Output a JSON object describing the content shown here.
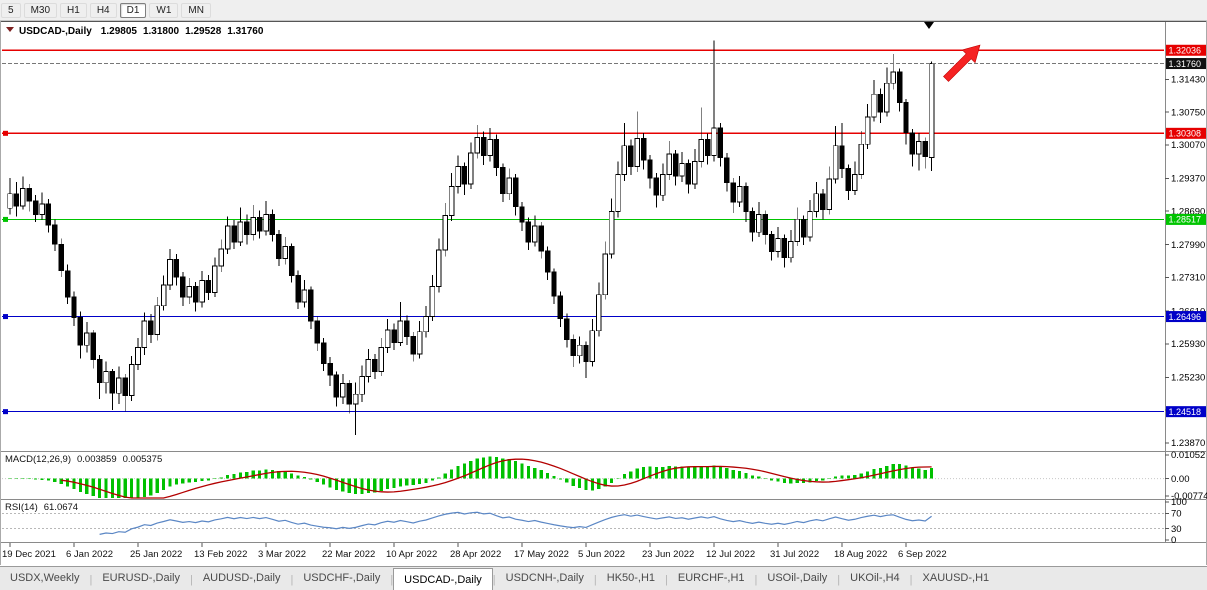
{
  "toolbar": {
    "timeframes": [
      {
        "label": "5",
        "active": false
      },
      {
        "label": "M30",
        "active": false
      },
      {
        "label": "H1",
        "active": false
      },
      {
        "label": "H4",
        "active": false
      },
      {
        "label": "D1",
        "active": true
      },
      {
        "label": "W1",
        "active": false
      },
      {
        "label": "MN",
        "active": false
      }
    ]
  },
  "chart": {
    "symbol_period": "USDCAD-,Daily",
    "open": "1.29805",
    "high": "1.31800",
    "low": "1.29528",
    "close": "1.31760",
    "current_price": {
      "label": "1.31760",
      "value": 1.3176,
      "box_color": "#111111"
    },
    "hlines": [
      {
        "value": 1.32036,
        "label": "1.32036",
        "color": "#e60000",
        "handle": false
      },
      {
        "value": 1.30308,
        "label": "1.30308",
        "color": "#e60000",
        "handle": true
      },
      {
        "value": 1.28517,
        "label": "1.28517",
        "color": "#00c400",
        "handle": true
      },
      {
        "value": 1.26496,
        "label": "1.26496",
        "color": "#0000c8",
        "handle": true
      },
      {
        "value": 1.24518,
        "label": "1.24518",
        "color": "#0000c8",
        "handle": true
      }
    ],
    "price_scale_labels": [
      "1.31430",
      "1.30750",
      "1.30070",
      "1.29370",
      "1.28690",
      "1.27990",
      "1.27310",
      "1.26610",
      "1.25930",
      "1.25230",
      "1.24550",
      "1.23870"
    ],
    "arrow_object_color": "#f52222"
  },
  "macd_panel": {
    "title": "MACD(12,26,9)",
    "value_main": "0.003859",
    "value_signal": "0.005375",
    "scale_labels": [
      "0.01052",
      "0.00",
      "-0.00774"
    ],
    "histogram_color": "#00c000",
    "signal_color": "#b30000"
  },
  "rsi_panel": {
    "title": "RSI(14)",
    "value": "61.0674",
    "scale_labels": [
      "100",
      "70",
      "30",
      "0"
    ],
    "levels": [
      70,
      30
    ],
    "line_color": "#5b87c5"
  },
  "time_axis": {
    "labels": [
      "19 Dec 2021",
      "6 Jan 2022",
      "25 Jan 2022",
      "13 Feb 2022",
      "3 Mar 2022",
      "22 Mar 2022",
      "10 Apr 2022",
      "28 Apr 2022",
      "17 May 2022",
      "5 Jun 2022",
      "23 Jun 2022",
      "12 Jul 2022",
      "31 Jul 2022",
      "18 Aug 2022",
      "6 Sep 2022"
    ]
  },
  "tabbar": {
    "tabs": [
      {
        "label": "USDX,Weekly",
        "active": false
      },
      {
        "label": "EURUSD-,Daily",
        "active": false
      },
      {
        "label": "AUDUSD-,Daily",
        "active": false
      },
      {
        "label": "USDCHF-,Daily",
        "active": false
      },
      {
        "label": "USDCAD-,Daily",
        "active": true
      },
      {
        "label": "USDCNH-,Daily",
        "active": false
      },
      {
        "label": "HK50-,H1",
        "active": false
      },
      {
        "label": "EURCHF-,H1",
        "active": false
      },
      {
        "label": "USOil-,Daily",
        "active": false
      },
      {
        "label": "UKOil-,H4",
        "active": false
      },
      {
        "label": "XAUUSD-,H1",
        "active": false
      }
    ]
  },
  "chart_data": {
    "type": "candlestick",
    "symbol": "USDCAD",
    "timeframe": "Daily",
    "title": "USDCAD-,Daily 1.29805 1.31800 1.29528 1.31760",
    "ylim": [
      1.2372,
      1.3252
    ],
    "x_labels": [
      "19 Dec 2021",
      "6 Jan 2022",
      "25 Jan 2022",
      "13 Feb 2022",
      "3 Mar 2022",
      "22 Mar 2022",
      "10 Apr 2022",
      "28 Apr 2022",
      "17 May 2022",
      "5 Jun 2022",
      "23 Jun 2022",
      "12 Jul 2022",
      "31 Jul 2022",
      "18 Aug 2022",
      "6 Sep 2022"
    ],
    "candles_per_label_interval": 10,
    "grid": false,
    "legend_position": "none",
    "hlines": [
      1.32036,
      1.30308,
      1.28517,
      1.26496,
      1.24518
    ],
    "current_ohlc": [
      1.29805,
      1.318,
      1.29528,
      1.3176
    ],
    "indicators": [
      {
        "type": "MACD",
        "params": [
          12,
          26,
          9
        ],
        "current_main": 0.003859,
        "current_signal": 0.005375,
        "scale": [
          0.01052,
          0.0,
          -0.00774
        ]
      },
      {
        "type": "RSI",
        "params": [
          14
        ],
        "current": 61.0674,
        "levels": [
          70,
          30
        ],
        "scale": [
          100,
          70,
          30,
          0
        ]
      }
    ],
    "candles": [
      [
        1.2875,
        1.2938,
        1.2862,
        1.2905
      ],
      [
        1.2905,
        1.293,
        1.2858,
        1.288
      ],
      [
        1.288,
        1.2941,
        1.2872,
        1.2916
      ],
      [
        1.2916,
        1.2925,
        1.2868,
        1.289
      ],
      [
        1.289,
        1.2902,
        1.2846,
        1.2862
      ],
      [
        1.2862,
        1.2908,
        1.285,
        1.2884
      ],
      [
        1.2884,
        1.2894,
        1.2825,
        1.284
      ],
      [
        1.284,
        1.2852,
        1.2786,
        1.28
      ],
      [
        1.28,
        1.2812,
        1.2732,
        1.2745
      ],
      [
        1.2745,
        1.2758,
        1.2676,
        1.269
      ],
      [
        1.269,
        1.2702,
        1.263,
        1.2648
      ],
      [
        1.2648,
        1.266,
        1.2562,
        1.259
      ],
      [
        1.259,
        1.2638,
        1.2575,
        1.2615
      ],
      [
        1.2615,
        1.2622,
        1.2542,
        1.256
      ],
      [
        1.256,
        1.257,
        1.2478,
        1.2512
      ],
      [
        1.2512,
        1.2556,
        1.249,
        1.2535
      ],
      [
        1.2535,
        1.254,
        1.2455,
        1.249
      ],
      [
        1.249,
        1.2546,
        1.2468,
        1.2522
      ],
      [
        1.2522,
        1.253,
        1.2452,
        1.2485
      ],
      [
        1.2485,
        1.2568,
        1.2474,
        1.255
      ],
      [
        1.255,
        1.2605,
        1.2538,
        1.2585
      ],
      [
        1.2585,
        1.2658,
        1.257,
        1.264
      ],
      [
        1.264,
        1.2655,
        1.2595,
        1.2612
      ],
      [
        1.2612,
        1.269,
        1.26,
        1.2672
      ],
      [
        1.2672,
        1.2735,
        1.2662,
        1.2715
      ],
      [
        1.2715,
        1.279,
        1.2705,
        1.2768
      ],
      [
        1.2768,
        1.278,
        1.2714,
        1.2732
      ],
      [
        1.2732,
        1.2742,
        1.2672,
        1.269
      ],
      [
        1.269,
        1.273,
        1.2676,
        1.2712
      ],
      [
        1.2712,
        1.2722,
        1.266,
        1.268
      ],
      [
        1.268,
        1.2744,
        1.2668,
        1.2725
      ],
      [
        1.2725,
        1.2736,
        1.2684,
        1.27
      ],
      [
        1.27,
        1.2772,
        1.269,
        1.2755
      ],
      [
        1.2755,
        1.281,
        1.2742,
        1.279
      ],
      [
        1.279,
        1.2858,
        1.278,
        1.2838
      ],
      [
        1.2838,
        1.285,
        1.279,
        1.2805
      ],
      [
        1.2805,
        1.2876,
        1.2796,
        1.2846
      ],
      [
        1.2846,
        1.2862,
        1.28,
        1.282
      ],
      [
        1.282,
        1.2882,
        1.2808,
        1.2856
      ],
      [
        1.2856,
        1.287,
        1.2812,
        1.2828
      ],
      [
        1.2828,
        1.289,
        1.2818,
        1.2862
      ],
      [
        1.2862,
        1.2872,
        1.2806,
        1.282
      ],
      [
        1.282,
        1.283,
        1.2755,
        1.277
      ],
      [
        1.277,
        1.2815,
        1.2758,
        1.2795
      ],
      [
        1.2795,
        1.2802,
        1.272,
        1.2735
      ],
      [
        1.2735,
        1.2745,
        1.2665,
        1.268
      ],
      [
        1.268,
        1.2726,
        1.2668,
        1.2705
      ],
      [
        1.2705,
        1.2712,
        1.2624,
        1.264
      ],
      [
        1.264,
        1.265,
        1.2578,
        1.2595
      ],
      [
        1.2595,
        1.2605,
        1.2536,
        1.2552
      ],
      [
        1.2552,
        1.2565,
        1.2505,
        1.2528
      ],
      [
        1.2528,
        1.2535,
        1.2462,
        1.2482
      ],
      [
        1.2482,
        1.253,
        1.2468,
        1.251
      ],
      [
        1.251,
        1.2518,
        1.2448,
        1.2468
      ],
      [
        1.2468,
        1.2512,
        1.2403,
        1.2488
      ],
      [
        1.2488,
        1.2548,
        1.2472,
        1.2525
      ],
      [
        1.2525,
        1.2582,
        1.2512,
        1.256
      ],
      [
        1.256,
        1.2572,
        1.252,
        1.2535
      ],
      [
        1.2535,
        1.2605,
        1.2526,
        1.2585
      ],
      [
        1.2585,
        1.2645,
        1.2574,
        1.2622
      ],
      [
        1.2622,
        1.2635,
        1.258,
        1.2596
      ],
      [
        1.2596,
        1.268,
        1.2588,
        1.264
      ],
      [
        1.264,
        1.2652,
        1.259,
        1.2608
      ],
      [
        1.2608,
        1.2618,
        1.2556,
        1.2572
      ],
      [
        1.2572,
        1.264,
        1.2562,
        1.2618
      ],
      [
        1.2618,
        1.2672,
        1.2606,
        1.265
      ],
      [
        1.265,
        1.2736,
        1.264,
        1.2712
      ],
      [
        1.2712,
        1.2812,
        1.27,
        1.2788
      ],
      [
        1.2788,
        1.2886,
        1.2775,
        1.286
      ],
      [
        1.286,
        1.2948,
        1.2848,
        1.292
      ],
      [
        1.292,
        1.2985,
        1.2906,
        1.2962
      ],
      [
        1.2962,
        1.297,
        1.2902,
        1.2925
      ],
      [
        1.2925,
        1.3012,
        1.2915,
        1.299
      ],
      [
        1.299,
        1.3048,
        1.2978,
        1.3022
      ],
      [
        1.3022,
        1.3035,
        1.2965,
        1.2985
      ],
      [
        1.2985,
        1.3042,
        1.2972,
        1.3018
      ],
      [
        1.3018,
        1.3028,
        1.2942,
        1.296
      ],
      [
        1.296,
        1.2968,
        1.2888,
        1.2905
      ],
      [
        1.2905,
        1.2958,
        1.2892,
        1.2938
      ],
      [
        1.2938,
        1.2946,
        1.286,
        1.2878
      ],
      [
        1.2878,
        1.2888,
        1.2828,
        1.2846
      ],
      [
        1.2846,
        1.2856,
        1.2788,
        1.2805
      ],
      [
        1.2805,
        1.286,
        1.2795,
        1.2838
      ],
      [
        1.2838,
        1.2846,
        1.277,
        1.2786
      ],
      [
        1.2786,
        1.2795,
        1.2726,
        1.2742
      ],
      [
        1.2742,
        1.275,
        1.2676,
        1.2692
      ],
      [
        1.2692,
        1.2702,
        1.2628,
        1.2645
      ],
      [
        1.2645,
        1.2656,
        1.2585,
        1.2602
      ],
      [
        1.2602,
        1.2612,
        1.2545,
        1.2568
      ],
      [
        1.2568,
        1.2608,
        1.2552,
        1.259
      ],
      [
        1.259,
        1.2598,
        1.2522,
        1.2556
      ],
      [
        1.2556,
        1.2645,
        1.2546,
        1.262
      ],
      [
        1.262,
        1.272,
        1.2608,
        1.2695
      ],
      [
        1.2695,
        1.2806,
        1.2685,
        1.278
      ],
      [
        1.278,
        1.2895,
        1.277,
        1.2868
      ],
      [
        1.2868,
        1.2972,
        1.2856,
        1.2945
      ],
      [
        1.2945,
        1.3052,
        1.2932,
        1.3005
      ],
      [
        1.3005,
        1.3018,
        1.2944,
        1.2962
      ],
      [
        1.2962,
        1.3076,
        1.295,
        1.302
      ],
      [
        1.302,
        1.3032,
        1.2956,
        1.2975
      ],
      [
        1.2975,
        1.2986,
        1.2916,
        1.2938
      ],
      [
        1.2938,
        1.2948,
        1.2876,
        1.2902
      ],
      [
        1.2902,
        1.2968,
        1.289,
        1.2945
      ],
      [
        1.2945,
        1.3015,
        1.2934,
        1.2988
      ],
      [
        1.2988,
        1.2996,
        1.2922,
        1.2942
      ],
      [
        1.2942,
        1.2992,
        1.293,
        1.2968
      ],
      [
        1.2968,
        1.2976,
        1.2906,
        1.2925
      ],
      [
        1.2925,
        1.2998,
        1.2915,
        1.2972
      ],
      [
        1.2972,
        1.3085,
        1.296,
        1.3018
      ],
      [
        1.3018,
        1.303,
        1.2966,
        1.2985
      ],
      [
        1.2985,
        1.3224,
        1.2972,
        1.3042
      ],
      [
        1.3042,
        1.3052,
        1.2962,
        1.298
      ],
      [
        1.298,
        1.299,
        1.291,
        1.2928
      ],
      [
        1.2928,
        1.2938,
        1.2865,
        1.2888
      ],
      [
        1.2888,
        1.2942,
        1.2878,
        1.292
      ],
      [
        1.292,
        1.2928,
        1.2846,
        1.2868
      ],
      [
        1.2868,
        1.2876,
        1.2806,
        1.2825
      ],
      [
        1.2825,
        1.2888,
        1.2815,
        1.2862
      ],
      [
        1.2862,
        1.287,
        1.28,
        1.282
      ],
      [
        1.282,
        1.2828,
        1.2766,
        1.2785
      ],
      [
        1.2785,
        1.2836,
        1.2772,
        1.2812
      ],
      [
        1.2812,
        1.282,
        1.2752,
        1.2772
      ],
      [
        1.2772,
        1.283,
        1.2762,
        1.2806
      ],
      [
        1.2806,
        1.2876,
        1.2796,
        1.2852
      ],
      [
        1.2852,
        1.286,
        1.2798,
        1.2815
      ],
      [
        1.2815,
        1.2892,
        1.2806,
        1.2868
      ],
      [
        1.2868,
        1.293,
        1.2856,
        1.2905
      ],
      [
        1.2905,
        1.2915,
        1.2852,
        1.2872
      ],
      [
        1.2872,
        1.2962,
        1.2862,
        1.2936
      ],
      [
        1.2936,
        1.3046,
        1.2926,
        1.3005
      ],
      [
        1.3005,
        1.3052,
        1.2938,
        1.2958
      ],
      [
        1.2958,
        1.2966,
        1.2892,
        1.2912
      ],
      [
        1.2912,
        1.2972,
        1.2902,
        1.2945
      ],
      [
        1.2945,
        1.3036,
        1.2936,
        1.3008
      ],
      [
        1.3008,
        1.3092,
        1.2998,
        1.3065
      ],
      [
        1.3065,
        1.3142,
        1.3055,
        1.3112
      ],
      [
        1.3112,
        1.3124,
        1.3052,
        1.3075
      ],
      [
        1.3075,
        1.3168,
        1.3066,
        1.3135
      ],
      [
        1.3135,
        1.3196,
        1.3122,
        1.3158
      ],
      [
        1.3158,
        1.3166,
        1.3076,
        1.3095
      ],
      [
        1.3095,
        1.3102,
        1.3008,
        1.3032
      ],
      [
        1.3032,
        1.304,
        1.2962,
        1.2988
      ],
      [
        1.2988,
        1.3032,
        1.2953,
        1.3014
      ],
      [
        1.3014,
        1.3022,
        1.2958,
        1.2982
      ],
      [
        1.29805,
        1.318,
        1.29528,
        1.3176
      ]
    ]
  }
}
